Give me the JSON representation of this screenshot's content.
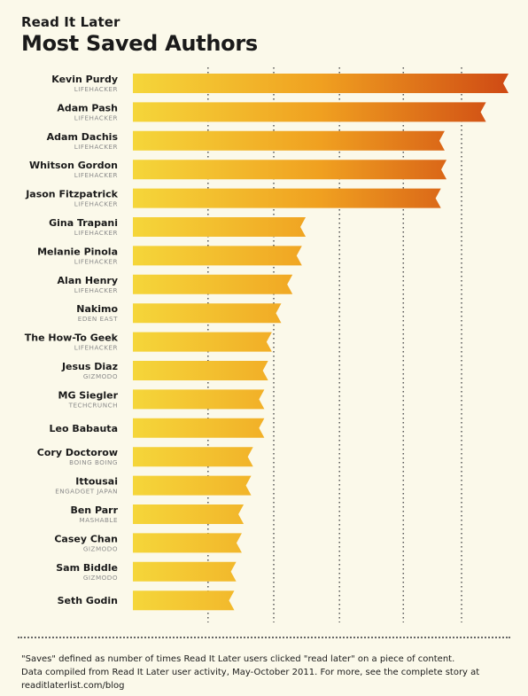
{
  "header": {
    "brand": "Read It Later",
    "title": "Most Saved Authors"
  },
  "chart_data": {
    "type": "bar",
    "orientation": "horizontal",
    "title": "Most Saved Authors",
    "categories": [
      {
        "author": "Kevin Purdy",
        "publication": "LIFEHACKER"
      },
      {
        "author": "Adam Pash",
        "publication": "LIFEHACKER"
      },
      {
        "author": "Adam Dachis",
        "publication": "LIFEHACKER"
      },
      {
        "author": "Whitson Gordon",
        "publication": "LIFEHACKER"
      },
      {
        "author": "Jason Fitzpatrick",
        "publication": "LIFEHACKER"
      },
      {
        "author": "Gina Trapani",
        "publication": "LIFEHACKER"
      },
      {
        "author": "Melanie Pinola",
        "publication": "LIFEHACKER"
      },
      {
        "author": "Alan Henry",
        "publication": "LIFEHACKER"
      },
      {
        "author": "Nakimo",
        "publication": "EDEN EAST"
      },
      {
        "author": "The How-To Geek",
        "publication": "LIFEHACKER"
      },
      {
        "author": "Jesus Diaz",
        "publication": "GIZMODO"
      },
      {
        "author": "MG Siegler",
        "publication": "TECHCRUNCH"
      },
      {
        "author": "Leo Babauta",
        "publication": ""
      },
      {
        "author": "Cory Doctorow",
        "publication": "BOING BOING"
      },
      {
        "author": "Ittousai",
        "publication": "ENGADGET JAPAN"
      },
      {
        "author": "Ben Parr",
        "publication": "MASHABLE"
      },
      {
        "author": "Casey Chan",
        "publication": "GIZMODO"
      },
      {
        "author": "Sam Biddle",
        "publication": "GIZMODO"
      },
      {
        "author": "Seth Godin",
        "publication": ""
      }
    ],
    "values": [
      100,
      94,
      83,
      83.5,
      82,
      46,
      45,
      42.5,
      39.5,
      37,
      36,
      35,
      35,
      32,
      31.5,
      29.5,
      29,
      27.5,
      27
    ],
    "xlim": [
      0,
      100
    ],
    "grid_ticks": [
      20,
      37.5,
      55,
      72,
      87.5
    ],
    "grid": true,
    "colors": {
      "low": "#f5d63a",
      "mid": "#f0a020",
      "high": "#cf4a14",
      "grid": "#555555"
    }
  },
  "footer": {
    "lines": [
      "\"Saves\" defined as number of times Read It Later users clicked \"read later\" on a piece of content.",
      "Data compiled from Read It Later user activity, May-October 2011. For more, see the complete story at",
      "readitlaterlist.com/blog"
    ]
  }
}
